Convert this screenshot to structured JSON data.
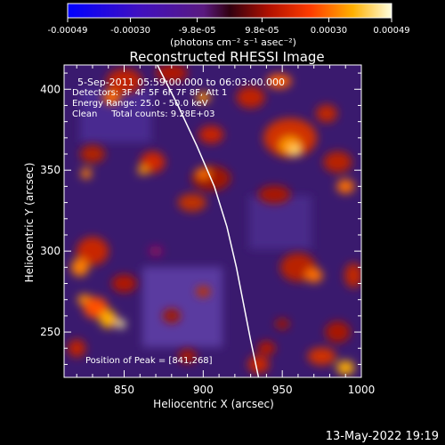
{
  "chart_data": {
    "type": "heatmap",
    "title": "Reconstructed RHESSI Image",
    "xlabel": "Heliocentric X (arcsec)",
    "ylabel": "Heliocentric Y (arcsec)",
    "xlim": [
      812,
      1000
    ],
    "ylim": [
      222,
      415
    ],
    "x_ticks": [
      850,
      900,
      950,
      1000
    ],
    "y_ticks": [
      250,
      300,
      350,
      400
    ],
    "colorbar": {
      "range": [
        -0.00049,
        0.00049
      ],
      "tick_labels": [
        "-0.00049",
        "-0.00030",
        "-9.8e-05",
        "9.8e-05",
        "0.00030",
        "0.00049"
      ],
      "tick_values": [
        -0.00049,
        -0.0003,
        -9.8e-05,
        9.8e-05,
        0.0003,
        0.00049
      ],
      "units_label": "(photons cm⁻² s⁻¹ asec⁻²)"
    },
    "annotations": [
      "5-Sep-2011 05:59:00.000 to 06:03:00.000",
      "Detectors: 3F 4F 5F 6F 7F 8F, Att 1",
      "Energy Range: 25.0 - 50.0 keV",
      "Clean     Total counts: 9.28E+03"
    ],
    "peak_label": "Position of Peak = [841,268]",
    "limb_curve": [
      [
        871,
        415
      ],
      [
        884,
        390
      ],
      [
        896,
        365
      ],
      [
        907,
        340
      ],
      [
        915,
        315
      ],
      [
        921,
        290
      ],
      [
        926,
        265
      ],
      [
        930,
        245
      ],
      [
        935,
        222
      ]
    ],
    "grid": false
  },
  "footer": {
    "date": "13-May-2022 19:19"
  }
}
